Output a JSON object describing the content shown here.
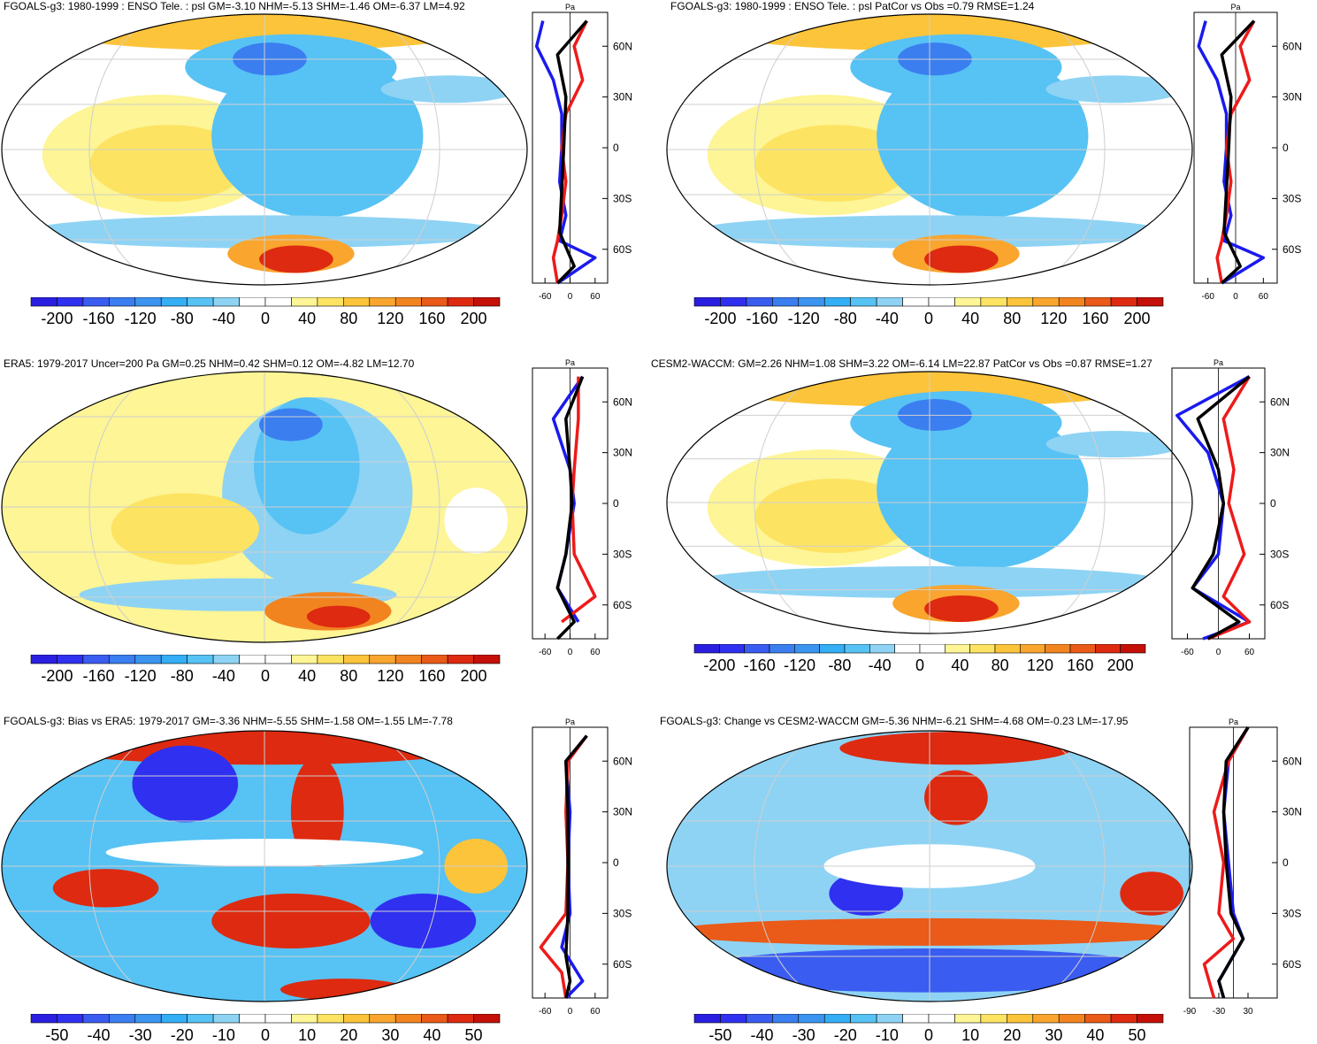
{
  "palettes": {
    "bluered": [
      "#2a1fe0",
      "#3030f0",
      "#3a5cf0",
      "#3a7ef0",
      "#3b95f0",
      "#34aef5",
      "#57c2f4",
      "#8ed3f4",
      "#ffffff",
      "#ffffff",
      "#fdf596",
      "#fde362",
      "#fcc43a",
      "#f9a52e",
      "#f28420",
      "#ea5a18",
      "#de2a10",
      "#c41008"
    ],
    "colors": {
      "blue_line": "#1a1aee",
      "red_line": "#ee1a1a",
      "black_line": "#000000",
      "grid": "#cfcfcf"
    }
  },
  "panels": [
    {
      "id": "p1",
      "title": "FGOALS-g3: 1980-1999 : ENSO Tele. : psl GM=-3.10 NHM=-5.13 SHM=-1.46 OM=-6.37 LM=4.92",
      "unit": "Pa",
      "lat_labels": [
        "60N",
        "30N",
        "0",
        "30S",
        "60S"
      ],
      "x_ticks": [
        "-60",
        "0",
        "60"
      ],
      "cbar_labels": [
        "-200",
        "-160",
        "-120",
        "-80",
        "-40",
        "0",
        "40",
        "80",
        "120",
        "160",
        "200"
      ]
    },
    {
      "id": "p2",
      "title": "FGOALS-g3: 1980-1999 : ENSO Tele. : psl PatCor vs Obs =0.79 RMSE=1.24",
      "unit": "Pa",
      "lat_labels": [
        "60N",
        "30N",
        "0",
        "30S",
        "60S"
      ],
      "x_ticks": [
        "-60",
        "0",
        "60"
      ],
      "cbar_labels": [
        "-200",
        "-160",
        "-120",
        "-80",
        "-40",
        "0",
        "40",
        "80",
        "120",
        "160",
        "200"
      ]
    },
    {
      "id": "p3",
      "title": "ERA5: 1979-2017 Uncer=200 Pa GM=0.25 NHM=0.42 SHM=0.12 OM=-4.82 LM=12.70",
      "unit": "Pa",
      "lat_labels": [
        "60N",
        "30N",
        "0",
        "30S",
        "60S"
      ],
      "x_ticks": [
        "-60",
        "0",
        "60"
      ],
      "cbar_labels": [
        "-200",
        "-160",
        "-120",
        "-80",
        "-40",
        "0",
        "40",
        "80",
        "120",
        "160",
        "200"
      ]
    },
    {
      "id": "p4",
      "title": "CESM2-WACCM: GM=2.26 NHM=1.08 SHM=3.22 OM=-6.14 LM=22.87 PatCor vs Obs =0.87 RMSE=1.27",
      "unit": "Pa",
      "lat_labels": [
        "60N",
        "30N",
        "0",
        "30S",
        "60S"
      ],
      "x_ticks": [
        "-60",
        "0",
        "60"
      ],
      "cbar_labels": [
        "-200",
        "-160",
        "-120",
        "-80",
        "-40",
        "0",
        "40",
        "80",
        "120",
        "160",
        "200"
      ]
    },
    {
      "id": "p5",
      "title": "FGOALS-g3: Bias vs ERA5: 1979-2017 GM=-3.36 NHM=-5.55 SHM=-1.58 OM=-1.55 LM=-7.78",
      "unit": "Pa",
      "lat_labels": [
        "60N",
        "30N",
        "0",
        "30S",
        "60S"
      ],
      "x_ticks": [
        "-60",
        "0",
        "60"
      ],
      "cbar_labels": [
        "-50",
        "-40",
        "-30",
        "-20",
        "-10",
        "0",
        "10",
        "20",
        "30",
        "40",
        "50"
      ]
    },
    {
      "id": "p6",
      "title": "FGOALS-g3: Change vs CESM2-WACCM GM=-5.36 NHM=-6.21 SHM=-4.68 OM=-0.23 LM=-17.95",
      "unit": "Pa",
      "lat_labels": [
        "60N",
        "30N",
        "0",
        "30S",
        "60S"
      ],
      "x_ticks": [
        "-90",
        "-30",
        "30"
      ],
      "cbar_labels": [
        "-50",
        "-40",
        "-30",
        "-20",
        "-10",
        "0",
        "10",
        "20",
        "30",
        "40",
        "50"
      ]
    }
  ]
}
